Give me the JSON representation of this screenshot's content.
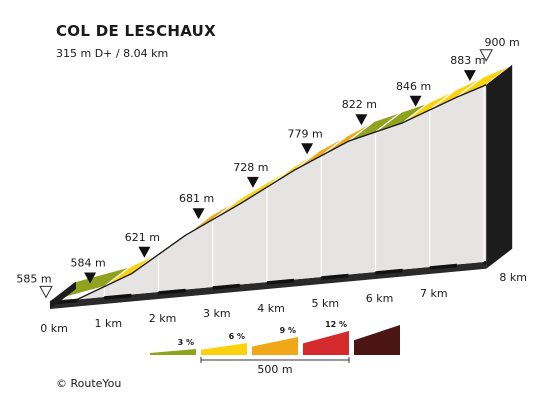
{
  "chart_data": {
    "type": "area",
    "title": "COL DE LESCHAUX",
    "subtitle": "315 m D+ / 8.04 km",
    "x_unit": "km",
    "km_ticks": [
      0,
      1,
      2,
      3,
      4,
      5,
      6,
      7,
      8
    ],
    "km_tick_labels": [
      "0 km",
      "1 km",
      "2 km",
      "3 km",
      "4 km",
      "5 km",
      "6 km",
      "7 km",
      "8 km"
    ],
    "start": {
      "label": "585 m",
      "km": 0,
      "elevation_m": 585
    },
    "finish": {
      "label": "900 m",
      "km": 8.04,
      "elevation_m": 900
    },
    "points": [
      {
        "km": 0,
        "elevation_m": 585
      },
      {
        "km": 0.5,
        "elevation_m": 584
      },
      {
        "km": 1.5,
        "elevation_m": 621
      },
      {
        "km": 2.5,
        "elevation_m": 681
      },
      {
        "km": 3.5,
        "elevation_m": 728
      },
      {
        "km": 4.5,
        "elevation_m": 779
      },
      {
        "km": 5.5,
        "elevation_m": 822
      },
      {
        "km": 6.5,
        "elevation_m": 846
      },
      {
        "km": 7.5,
        "elevation_m": 883
      },
      {
        "km": 8.04,
        "elevation_m": 900
      }
    ],
    "checkpoints": [
      {
        "label": "584 m",
        "km": 0.5,
        "elevation_m": 584
      },
      {
        "label": "621 m",
        "km": 1.5,
        "elevation_m": 621
      },
      {
        "label": "681 m",
        "km": 2.5,
        "elevation_m": 681
      },
      {
        "label": "728 m",
        "km": 3.5,
        "elevation_m": 728
      },
      {
        "label": "779 m",
        "km": 4.5,
        "elevation_m": 779
      },
      {
        "label": "822 m",
        "km": 5.5,
        "elevation_m": 822
      },
      {
        "label": "846 m",
        "km": 6.5,
        "elevation_m": 846
      },
      {
        "label": "883 m",
        "km": 7.5,
        "elevation_m": 883
      }
    ],
    "segments": [
      {
        "from_km": 0,
        "to_km": 1,
        "grade": "3 %"
      },
      {
        "from_km": 1,
        "to_km": 1.5,
        "grade": "6 %"
      },
      {
        "from_km": 1.5,
        "to_km": 2,
        "grade": "3 %"
      },
      {
        "from_km": 2,
        "to_km": 2.5,
        "grade": "6 %"
      },
      {
        "from_km": 2.5,
        "to_km": 3,
        "grade": "9 %"
      },
      {
        "from_km": 3,
        "to_km": 4,
        "grade": "6 %"
      },
      {
        "from_km": 4,
        "to_km": 4.5,
        "grade": "6 %"
      },
      {
        "from_km": 4.5,
        "to_km": 5,
        "grade": "9 %"
      },
      {
        "from_km": 5,
        "to_km": 5.5,
        "grade": "9 %"
      },
      {
        "from_km": 5.5,
        "to_km": 6,
        "grade": "3 %"
      },
      {
        "from_km": 6,
        "to_km": 6.5,
        "grade": "3 %"
      },
      {
        "from_km": 6.5,
        "to_km": 7,
        "grade": "6 %"
      },
      {
        "from_km": 7,
        "to_km": 7.5,
        "grade": "6 %"
      },
      {
        "from_km": 7.5,
        "to_km": 8.04,
        "grade": "6 %"
      }
    ],
    "legend": {
      "items": [
        {
          "label": "3 %",
          "color": "#8fa31e"
        },
        {
          "label": "6 %",
          "color": "#fcd20f"
        },
        {
          "label": "9 %",
          "color": "#f0a818"
        },
        {
          "label": "12 %",
          "color": "#d42a2c"
        },
        {
          "label": "",
          "color": "#4a1512"
        }
      ],
      "scale_label": "500 m"
    },
    "colors": {
      "wall": "#e6e4e2",
      "side_face": "#1c1c1c",
      "base": "#2a2a2a",
      "top_outline": "#1c1c1c"
    }
  },
  "credit": "© RouteYou"
}
